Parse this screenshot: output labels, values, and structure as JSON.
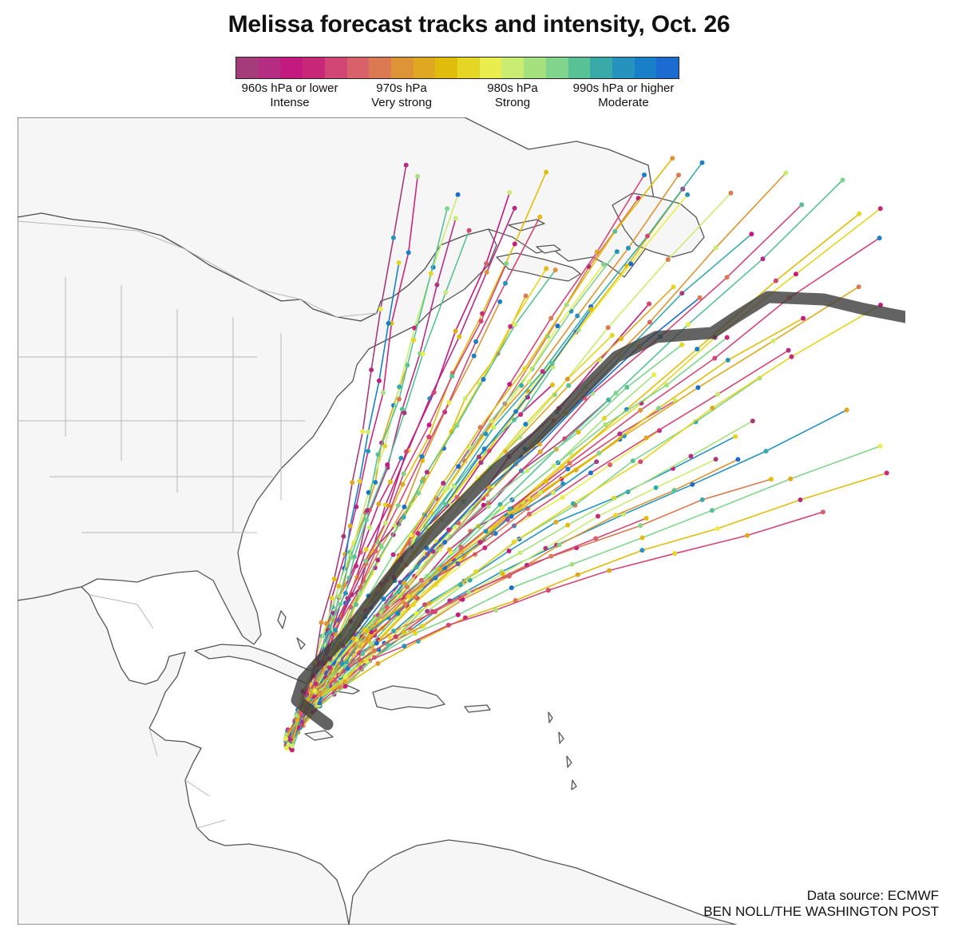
{
  "title": "Melissa forecast tracks and intensity, Oct. 26",
  "legend": {
    "colors": [
      "#a43c7b",
      "#b52d83",
      "#c41a7f",
      "#c9287a",
      "#d24676",
      "#d8616a",
      "#db7a52",
      "#dd9436",
      "#dfa820",
      "#e0bd0a",
      "#e5d524",
      "#e9ee4e",
      "#c9ec72",
      "#a5e27e",
      "#80d48c",
      "#59c196",
      "#3aaaa8",
      "#2593bd",
      "#1a7fc9",
      "#1b6bd0"
    ],
    "labels": [
      {
        "line1": "960s hPa or lower",
        "line2": "Intense"
      },
      {
        "line1": "970s hPa",
        "line2": "Very strong"
      },
      {
        "line1": "980s hPa",
        "line2": "Strong"
      },
      {
        "line1": "990s hPa or higher",
        "line2": "Moderate"
      }
    ]
  },
  "source": "Data source: ECMWF",
  "byline": "BEN NOLL/THE WASHINGTON POST",
  "colors": {
    "land": "#f6f6f6",
    "coast": "#555555",
    "border": "#b8b8b8",
    "mean_track": "#3c3c3c"
  }
}
